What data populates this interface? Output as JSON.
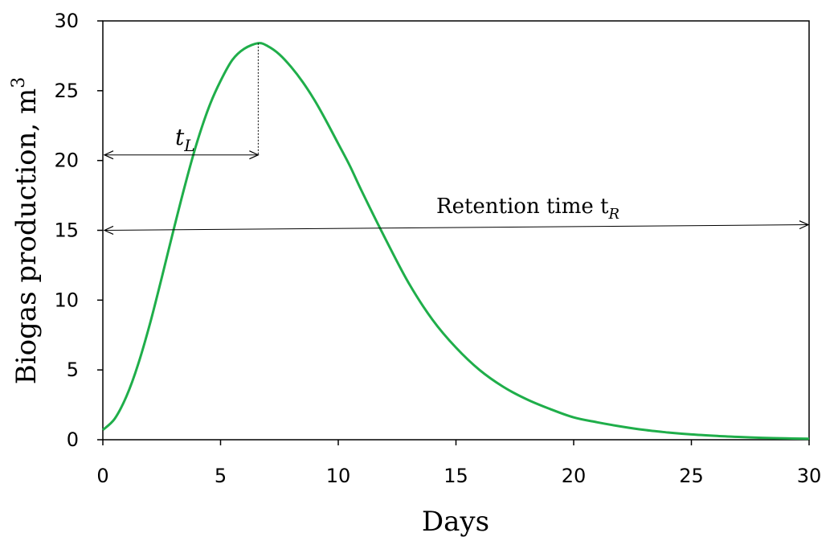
{
  "chart_data": {
    "type": "line",
    "title": "",
    "xlabel": "Days",
    "ylabel": "Biogas production, m",
    "ylabel_superscript": "3",
    "xlim": [
      0,
      30
    ],
    "ylim": [
      0,
      30
    ],
    "x_ticks": [
      "0",
      "5",
      "10",
      "15",
      "20",
      "25",
      "30"
    ],
    "y_ticks": [
      "0",
      "5",
      "10",
      "15",
      "20",
      "25",
      "30"
    ],
    "grid": false,
    "series": [
      {
        "color": "#1fae4a",
        "x": [
          0,
          0.5,
          1,
          1.5,
          2,
          2.5,
          3,
          3.5,
          4,
          4.5,
          5,
          5.5,
          6,
          6.6,
          7,
          7.5,
          8,
          8.5,
          9,
          9.5,
          10,
          10.5,
          11,
          12,
          13,
          14,
          15,
          16,
          17,
          18,
          19,
          20,
          21,
          22,
          23,
          24,
          25,
          26,
          27,
          28,
          29,
          30
        ],
        "y": [
          0.7,
          1.5,
          3.1,
          5.4,
          8.3,
          11.6,
          15.0,
          18.3,
          21.3,
          23.8,
          25.7,
          27.2,
          28.0,
          28.4,
          28.2,
          27.6,
          26.7,
          25.6,
          24.3,
          22.8,
          21.2,
          19.6,
          17.8,
          14.4,
          11.2,
          8.6,
          6.6,
          5.0,
          3.8,
          2.9,
          2.2,
          1.6,
          1.25,
          0.95,
          0.7,
          0.52,
          0.38,
          0.28,
          0.2,
          0.14,
          0.1,
          0.07
        ]
      }
    ],
    "annotations": {
      "tL": {
        "label": "t",
        "sub": "L",
        "x_from": 0,
        "x_to": 6.6,
        "y": 20.4,
        "peak_x": 6.6,
        "peak_y": 28.4
      },
      "tR": {
        "label": "Retention time t",
        "sub": "R",
        "x_from": 0,
        "x_to": 30,
        "y_from": 15,
        "y_to": 15.4
      }
    }
  }
}
